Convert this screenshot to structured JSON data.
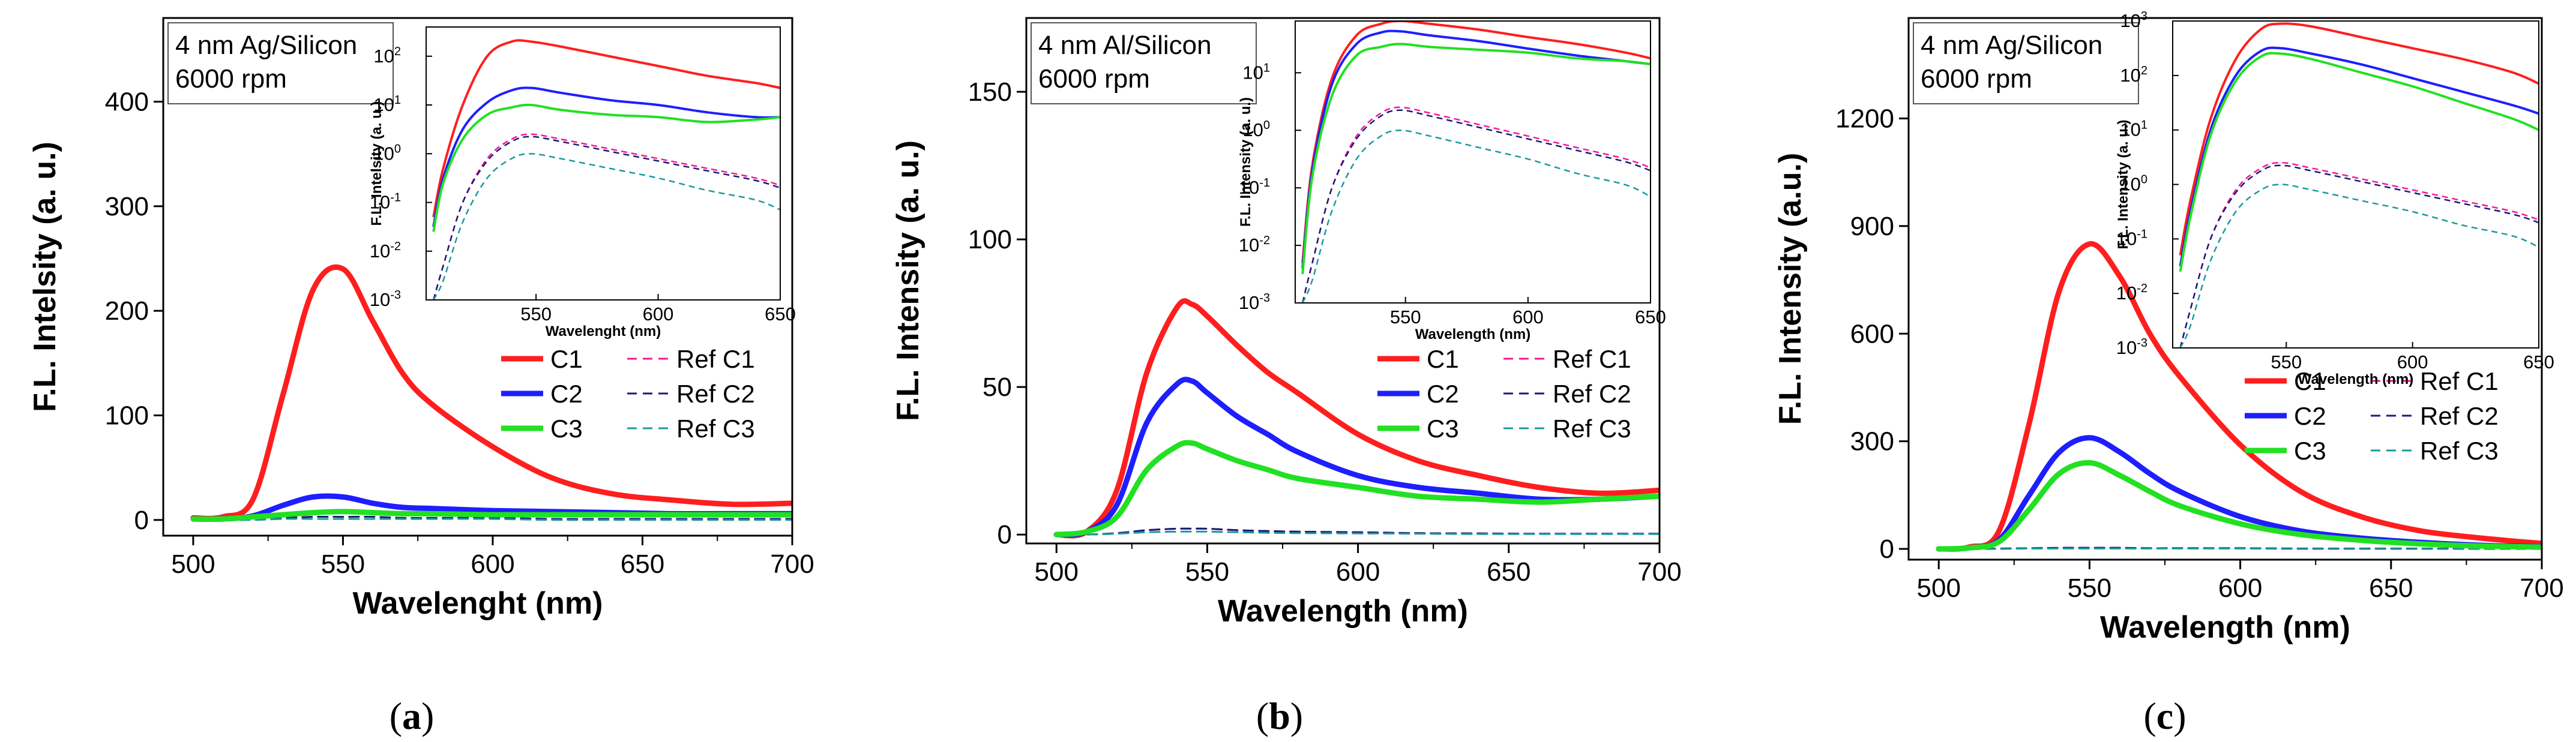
{
  "colors": {
    "C1": "#ff1e1e",
    "C2": "#1e1eff",
    "C3": "#22e022",
    "RefC1": "#ff1493",
    "RefC2": "#1a1a7a",
    "RefC3": "#1a9a9a"
  },
  "chart_data": [
    {
      "type": "line",
      "caption_pre": "(",
      "caption_letter": "a",
      "caption_post": ")",
      "title": "",
      "annotation": [
        "4 nm Ag/Silicon",
        "6000 rpm"
      ],
      "xlabel": "Wavelenght (nm)",
      "ylabel": "F.L. Intelsity (a. u.)",
      "xlim": [
        490,
        700
      ],
      "ylim": [
        -15,
        480
      ],
      "xticks": [
        500,
        550,
        600,
        650,
        700
      ],
      "yticks": [
        0,
        100,
        200,
        300,
        400
      ],
      "x": [
        500,
        510,
        520,
        530,
        540,
        550,
        560,
        570,
        580,
        600,
        620,
        640,
        660,
        680,
        700
      ],
      "series": [
        {
          "name": "C1",
          "dashed": false,
          "values": [
            2,
            3,
            20,
            120,
            220,
            240,
            190,
            140,
            110,
            70,
            40,
            25,
            19,
            15,
            16
          ]
        },
        {
          "name": "C2",
          "dashed": false,
          "values": [
            1,
            1,
            4,
            14,
            22,
            22,
            16,
            12,
            11,
            9,
            8,
            7,
            6,
            6,
            6
          ]
        },
        {
          "name": "C3",
          "dashed": false,
          "values": [
            1,
            1,
            3,
            5,
            7,
            8,
            7,
            6,
            6,
            5,
            5,
            5,
            5,
            5,
            5
          ]
        },
        {
          "name": "Ref C1",
          "dashed": true,
          "values": [
            0,
            0,
            1,
            2,
            3,
            3,
            3,
            2,
            2,
            2,
            1,
            1,
            1,
            1,
            1
          ]
        },
        {
          "name": "Ref C2",
          "dashed": true,
          "values": [
            0,
            0,
            1,
            2,
            3,
            3,
            3,
            2,
            2,
            2,
            1,
            1,
            1,
            1,
            1
          ]
        },
        {
          "name": "Ref C3",
          "dashed": true,
          "values": [
            0,
            0,
            0,
            1,
            1,
            1,
            1,
            1,
            1,
            1,
            0,
            0,
            0,
            0,
            0
          ]
        }
      ],
      "inset": {
        "xlabel": "Wavelenght (nm)",
        "ylabel": "F.L. Intelsity (a. u.)",
        "xlim": [
          505,
          650
        ],
        "ylog": [
          -3,
          2.6
        ],
        "xticks": [
          550,
          600,
          650
        ],
        "yticks": [
          -3,
          -2,
          -1,
          0,
          1,
          2
        ],
        "x": [
          508,
          512,
          520,
          530,
          540,
          548,
          560,
          580,
          600,
          620,
          640,
          650
        ],
        "series": [
          {
            "name": "C1",
            "dashed": false,
            "log": [
              -1.3,
              -0.3,
              1.0,
              2.0,
              2.3,
              2.3,
              2.2,
              2.0,
              1.8,
              1.6,
              1.45,
              1.35
            ]
          },
          {
            "name": "C2",
            "dashed": false,
            "log": [
              -1.5,
              -0.5,
              0.5,
              1.05,
              1.3,
              1.35,
              1.25,
              1.1,
              1.0,
              0.85,
              0.75,
              0.75
            ]
          },
          {
            "name": "C3",
            "dashed": false,
            "log": [
              -1.6,
              -0.6,
              0.3,
              0.8,
              0.95,
              1.0,
              0.9,
              0.8,
              0.75,
              0.65,
              0.7,
              0.75
            ]
          },
          {
            "name": "Ref C1",
            "dashed": true,
            "log": [
              -3.0,
              -2.3,
              -1.0,
              -0.1,
              0.3,
              0.4,
              0.3,
              0.1,
              -0.1,
              -0.3,
              -0.5,
              -0.65
            ]
          },
          {
            "name": "Ref C2",
            "dashed": true,
            "log": [
              -3.0,
              -2.3,
              -1.0,
              -0.15,
              0.25,
              0.35,
              0.25,
              0.05,
              -0.15,
              -0.35,
              -0.55,
              -0.7
            ]
          },
          {
            "name": "Ref C3",
            "dashed": true,
            "log": [
              -3.0,
              -2.6,
              -1.4,
              -0.5,
              -0.1,
              0.0,
              -0.1,
              -0.3,
              -0.5,
              -0.75,
              -0.95,
              -1.15
            ]
          }
        ]
      }
    },
    {
      "type": "line",
      "caption_pre": "(",
      "caption_letter": "b",
      "caption_post": ")",
      "title": "",
      "annotation": [
        "4 nm Al/Silicon",
        "6000 rpm"
      ],
      "xlabel": "Wavelength (nm)",
      "ylabel": "F.L. Intensity (a. u.)",
      "xlim": [
        490,
        700
      ],
      "ylim": [
        -3,
        175
      ],
      "xticks": [
        500,
        550,
        600,
        650,
        700
      ],
      "yticks": [
        0,
        50,
        100,
        150
      ],
      "x": [
        500,
        510,
        520,
        530,
        540,
        545,
        550,
        560,
        570,
        580,
        600,
        620,
        640,
        660,
        680,
        700
      ],
      "series": [
        {
          "name": "C1",
          "dashed": false,
          "values": [
            0,
            1,
            15,
            55,
            77,
            78,
            74,
            64,
            55,
            48,
            34,
            25,
            20,
            16,
            14,
            15
          ]
        },
        {
          "name": "C2",
          "dashed": false,
          "values": [
            0,
            1,
            10,
            38,
            51,
            52,
            48,
            40,
            34,
            28,
            20,
            16,
            14,
            12,
            12,
            13
          ]
        },
        {
          "name": "C3",
          "dashed": false,
          "values": [
            0,
            1,
            6,
            22,
            30,
            31,
            29,
            25,
            22,
            19,
            16,
            13,
            12,
            11,
            12,
            13
          ]
        },
        {
          "name": "Ref C1",
          "dashed": true,
          "values": [
            0,
            0,
            0.5,
            1.5,
            2,
            2,
            2,
            1.5,
            1.2,
            1,
            0.8,
            0.5,
            0.4,
            0.3,
            0.3,
            0.3
          ]
        },
        {
          "name": "Ref C2",
          "dashed": true,
          "values": [
            0,
            0,
            0.5,
            1.5,
            2,
            2,
            2,
            1.5,
            1.2,
            1,
            0.8,
            0.5,
            0.4,
            0.3,
            0.3,
            0.3
          ]
        },
        {
          "name": "Ref C3",
          "dashed": true,
          "values": [
            0,
            0,
            0.3,
            0.8,
            1,
            1,
            1,
            0.8,
            0.6,
            0.5,
            0.4,
            0.3,
            0.2,
            0.2,
            0.2,
            0.2
          ]
        }
      ],
      "inset": {
        "xlabel": "Wavelength (nm)",
        "ylabel": "F.L. Intensity (a. u.)",
        "xlim": [
          505,
          650
        ],
        "ylog": [
          -3,
          1.9
        ],
        "xticks": [
          550,
          600,
          650
        ],
        "yticks": [
          -3,
          -2,
          -1,
          0,
          1
        ],
        "x": [
          508,
          512,
          520,
          530,
          540,
          548,
          560,
          580,
          600,
          620,
          640,
          650
        ],
        "series": [
          {
            "name": "C1",
            "dashed": false,
            "log": [
              -2.3,
              -0.6,
              0.9,
              1.65,
              1.85,
              1.9,
              1.85,
              1.75,
              1.62,
              1.5,
              1.35,
              1.25
            ]
          },
          {
            "name": "C2",
            "dashed": false,
            "log": [
              -2.4,
              -0.7,
              0.8,
              1.5,
              1.7,
              1.72,
              1.65,
              1.55,
              1.42,
              1.3,
              1.2,
              1.15
            ]
          },
          {
            "name": "C3",
            "dashed": false,
            "log": [
              -2.5,
              -0.8,
              0.6,
              1.3,
              1.45,
              1.5,
              1.45,
              1.4,
              1.35,
              1.25,
              1.2,
              1.15
            ]
          },
          {
            "name": "Ref C1",
            "dashed": true,
            "log": [
              -3.0,
              -2.3,
              -1.0,
              -0.1,
              0.3,
              0.4,
              0.3,
              0.1,
              -0.1,
              -0.3,
              -0.5,
              -0.65
            ]
          },
          {
            "name": "Ref C2",
            "dashed": true,
            "log": [
              -3.0,
              -2.3,
              -1.0,
              -0.15,
              0.25,
              0.35,
              0.25,
              0.05,
              -0.15,
              -0.35,
              -0.55,
              -0.7
            ]
          },
          {
            "name": "Ref C3",
            "dashed": true,
            "log": [
              -3.0,
              -2.6,
              -1.4,
              -0.5,
              -0.1,
              0.0,
              -0.1,
              -0.3,
              -0.5,
              -0.75,
              -0.95,
              -1.15
            ]
          }
        ]
      }
    },
    {
      "type": "line",
      "caption_pre": "(",
      "caption_letter": "c",
      "caption_post": ")",
      "title": "",
      "annotation": [
        "4 nm Ag/Silicon",
        "6000 rpm"
      ],
      "xlabel": "Wavelength (nm)",
      "ylabel": "F.L. Intensity (a.u.)",
      "xlim": [
        490,
        700
      ],
      "ylim": [
        -30,
        1480
      ],
      "xticks": [
        500,
        550,
        600,
        650,
        700
      ],
      "yticks": [
        0,
        300,
        600,
        900,
        1200
      ],
      "x": [
        500,
        510,
        520,
        530,
        540,
        550,
        560,
        570,
        580,
        600,
        620,
        640,
        660,
        680,
        700
      ],
      "series": [
        {
          "name": "C1",
          "dashed": false,
          "values": [
            0,
            5,
            50,
            350,
            720,
            850,
            760,
            600,
            480,
            290,
            160,
            90,
            50,
            30,
            15
          ]
        },
        {
          "name": "C2",
          "dashed": false,
          "values": [
            0,
            3,
            25,
            150,
            270,
            310,
            270,
            210,
            160,
            90,
            50,
            30,
            18,
            10,
            6
          ]
        },
        {
          "name": "C3",
          "dashed": false,
          "values": [
            0,
            3,
            20,
            110,
            210,
            240,
            205,
            160,
            120,
            70,
            40,
            24,
            14,
            8,
            5
          ]
        },
        {
          "name": "Ref C1",
          "dashed": true,
          "values": [
            0,
            0,
            1,
            2,
            3,
            3,
            3,
            2,
            2,
            2,
            1,
            1,
            1,
            1,
            1
          ]
        },
        {
          "name": "Ref C2",
          "dashed": true,
          "values": [
            0,
            0,
            1,
            2,
            3,
            3,
            3,
            2,
            2,
            2,
            1,
            1,
            1,
            1,
            1
          ]
        },
        {
          "name": "Ref C3",
          "dashed": true,
          "values": [
            0,
            0,
            0,
            1,
            1,
            1,
            1,
            1,
            1,
            1,
            0,
            0,
            0,
            0,
            0
          ]
        }
      ],
      "inset": {
        "xlabel": "Wavelength (nm)",
        "ylabel": "F.L. Intensity (a. u.)",
        "xlim": [
          505,
          650
        ],
        "ylog": [
          -3,
          3.0
        ],
        "xticks": [
          550,
          600,
          650
        ],
        "yticks": [
          -3,
          -2,
          -1,
          0,
          1,
          2,
          3
        ],
        "x": [
          508,
          512,
          520,
          530,
          540,
          548,
          560,
          580,
          600,
          620,
          640,
          650
        ],
        "series": [
          {
            "name": "C1",
            "dashed": false,
            "log": [
              -1.3,
              -0.3,
              1.2,
              2.3,
              2.85,
              2.95,
              2.9,
              2.7,
              2.5,
              2.3,
              2.05,
              1.85
            ]
          },
          {
            "name": "C2",
            "dashed": false,
            "log": [
              -1.5,
              -0.5,
              1.0,
              2.0,
              2.45,
              2.5,
              2.4,
              2.2,
              1.95,
              1.7,
              1.45,
              1.3
            ]
          },
          {
            "name": "C3",
            "dashed": false,
            "log": [
              -1.6,
              -0.6,
              0.9,
              1.9,
              2.35,
              2.4,
              2.3,
              2.05,
              1.8,
              1.5,
              1.2,
              1.0
            ]
          },
          {
            "name": "Ref C1",
            "dashed": true,
            "log": [
              -3.0,
              -2.3,
              -1.0,
              -0.1,
              0.3,
              0.4,
              0.3,
              0.1,
              -0.1,
              -0.3,
              -0.5,
              -0.65
            ]
          },
          {
            "name": "Ref C2",
            "dashed": true,
            "log": [
              -3.0,
              -2.3,
              -1.0,
              -0.15,
              0.25,
              0.35,
              0.25,
              0.05,
              -0.15,
              -0.35,
              -0.55,
              -0.7
            ]
          },
          {
            "name": "Ref C3",
            "dashed": true,
            "log": [
              -3.0,
              -2.6,
              -1.4,
              -0.5,
              -0.1,
              0.0,
              -0.1,
              -0.3,
              -0.5,
              -0.75,
              -0.95,
              -1.15
            ]
          }
        ]
      }
    }
  ],
  "legend": {
    "entries": [
      [
        "C1",
        "Ref C1"
      ],
      [
        "C2",
        "Ref C2"
      ],
      [
        "C3",
        "Ref C3"
      ]
    ]
  },
  "inset_tick_labels": {
    "-3": "10",
    "-2": "10",
    "-1": "10",
    "0": "10",
    "1": "10",
    "2": "10",
    "3": "10"
  }
}
